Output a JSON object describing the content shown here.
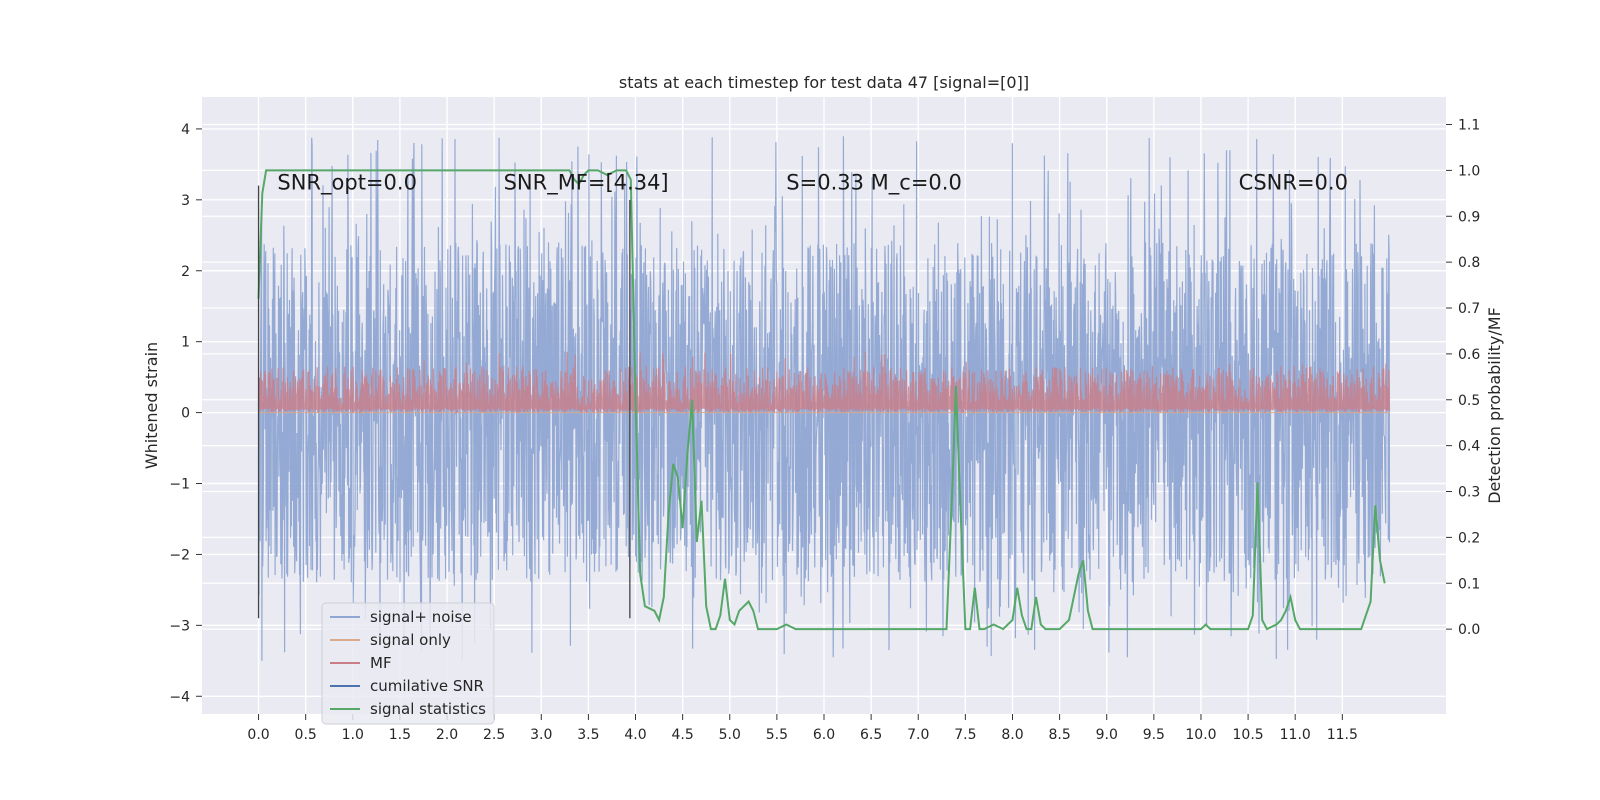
{
  "chart_data": {
    "type": "line",
    "title": "stats at each timestep for test data 47 [signal=[0]]",
    "ylabel": "Whitened strain",
    "y2label": "Detection probability/MF",
    "xlim": [
      -0.6,
      12.6
    ],
    "ylim": [
      -4.25,
      4.45
    ],
    "y2lim": [
      -0.185,
      1.16
    ],
    "x_ticks": [
      "0.0",
      "0.5",
      "1.0",
      "1.5",
      "2.0",
      "2.5",
      "3.0",
      "3.5",
      "4.0",
      "4.5",
      "5.0",
      "5.5",
      "6.0",
      "6.5",
      "7.0",
      "7.5",
      "8.0",
      "8.5",
      "9.0",
      "9.5",
      "10.0",
      "10.5",
      "11.0",
      "11.5"
    ],
    "y_ticks": [
      "4",
      "3",
      "2",
      "1",
      "0",
      "−1",
      "−2",
      "−3",
      "−4"
    ],
    "y2_ticks": [
      "1.1",
      "1.0",
      "0.9",
      "0.8",
      "0.7",
      "0.6",
      "0.5",
      "0.4",
      "0.3",
      "0.2",
      "0.1",
      "0.0"
    ],
    "grid": true,
    "legend_position": "lower-left",
    "annotations": [
      {
        "text": "SNR_opt=0.0",
        "x": 0.2,
        "y": 3.2
      },
      {
        "text": "SNR_MF=[4.34]",
        "x": 2.6,
        "y": 3.2
      },
      {
        "text": "S=0.33   M_c=0.0",
        "x": 5.6,
        "y": 3.2
      },
      {
        "text": "CSNR=0.0",
        "x": 10.4,
        "y": 3.2
      }
    ],
    "vertical_markers": [
      {
        "x": 0.0,
        "y": [
          -2.9,
          3.2
        ]
      },
      {
        "x": 3.94,
        "y": [
          -2.9,
          3.0
        ]
      }
    ],
    "series": [
      {
        "name": "signal+ noise",
        "color": "#8fa7d2",
        "kind": "noise",
        "x_range": [
          0.0,
          12.0
        ],
        "envelope": [
          -3.5,
          3.9
        ]
      },
      {
        "name": "signal only",
        "color": "#d9a98c",
        "kind": "flat",
        "x_range": [
          0.0,
          12.0
        ],
        "value": 0.0
      },
      {
        "name": "MF",
        "color": "#c97d87",
        "kind": "band",
        "x_range": [
          0.0,
          12.0
        ],
        "base": 0.0,
        "envelope": [
          0.0,
          0.95
        ]
      },
      {
        "name": "cumilative SNR",
        "color": "#4c72b0",
        "kind": "none"
      },
      {
        "name": "signal statistics",
        "color": "#55a868",
        "axis": "right",
        "x": [
          0.0,
          0.04,
          0.08,
          0.12,
          0.3,
          0.6,
          1.0,
          1.5,
          2.0,
          2.5,
          2.9,
          3.1,
          3.2,
          3.3,
          3.35,
          3.4,
          3.45,
          3.5,
          3.6,
          3.7,
          3.8,
          3.9,
          3.95,
          4.0,
          4.05,
          4.1,
          4.2,
          4.25,
          4.3,
          4.35,
          4.4,
          4.45,
          4.5,
          4.55,
          4.6,
          4.65,
          4.7,
          4.75,
          4.8,
          4.85,
          4.9,
          4.95,
          5.0,
          5.05,
          5.1,
          5.15,
          5.2,
          5.25,
          5.3,
          5.4,
          5.5,
          5.55,
          5.6,
          5.7,
          5.8,
          6.0,
          6.2,
          6.4,
          6.6,
          6.8,
          7.0,
          7.2,
          7.3,
          7.36,
          7.4,
          7.45,
          7.5,
          7.55,
          7.6,
          7.65,
          7.7,
          7.8,
          7.9,
          8.0,
          8.05,
          8.1,
          8.15,
          8.2,
          8.25,
          8.3,
          8.35,
          8.4,
          8.5,
          8.6,
          8.7,
          8.75,
          8.8,
          8.85,
          8.9,
          9.0,
          9.2,
          9.4,
          9.6,
          9.8,
          10.0,
          10.05,
          10.1,
          10.2,
          10.3,
          10.4,
          10.5,
          10.55,
          10.6,
          10.65,
          10.7,
          10.8,
          10.85,
          10.9,
          10.95,
          11.0,
          11.05,
          11.1,
          11.2,
          11.3,
          11.4,
          11.5,
          11.6,
          11.7,
          11.8,
          11.85,
          11.9,
          11.95
        ],
        "y": [
          0.72,
          0.95,
          1.0,
          1.0,
          1.0,
          1.0,
          1.0,
          1.0,
          1.0,
          1.0,
          1.0,
          1.0,
          1.0,
          1.0,
          0.98,
          0.97,
          0.99,
          1.0,
          1.0,
          0.99,
          1.0,
          1.0,
          0.98,
          0.5,
          0.12,
          0.05,
          0.04,
          0.02,
          0.07,
          0.25,
          0.36,
          0.33,
          0.22,
          0.38,
          0.5,
          0.19,
          0.28,
          0.05,
          0.0,
          0.0,
          0.03,
          0.11,
          0.02,
          0.01,
          0.04,
          0.05,
          0.06,
          0.04,
          0.0,
          0.0,
          0.0,
          0.005,
          0.01,
          0.0,
          0.0,
          0.0,
          0.0,
          0.0,
          0.0,
          0.0,
          0.0,
          0.0,
          0.0,
          0.3,
          0.53,
          0.25,
          0.0,
          0.0,
          0.09,
          0.0,
          0.0,
          0.01,
          0.0,
          0.02,
          0.09,
          0.03,
          0.0,
          0.0,
          0.07,
          0.01,
          0.0,
          0.0,
          0.0,
          0.02,
          0.12,
          0.15,
          0.04,
          0.0,
          0.0,
          0.0,
          0.0,
          0.0,
          0.0,
          0.0,
          0.0,
          0.01,
          0.0,
          0.0,
          0.0,
          0.0,
          0.0,
          0.03,
          0.32,
          0.02,
          0.0,
          0.01,
          0.02,
          0.04,
          0.07,
          0.02,
          0.0,
          0.0,
          0.0,
          0.0,
          0.0,
          0.0,
          0.0,
          0.0,
          0.06,
          0.27,
          0.15,
          0.1
        ]
      }
    ]
  }
}
